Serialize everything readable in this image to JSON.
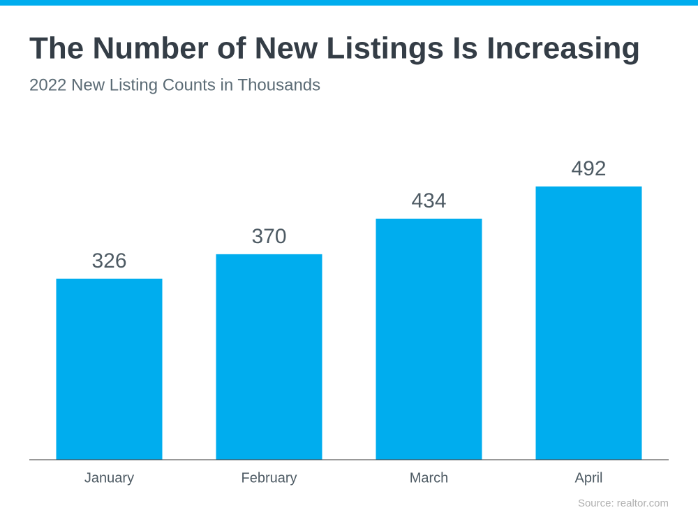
{
  "chart_data": {
    "type": "bar",
    "title": "The Number of New Listings Is Increasing",
    "subtitle": "2022 New Listing Counts in Thousands",
    "categories": [
      "January",
      "February",
      "March",
      "April"
    ],
    "values": [
      326,
      370,
      434,
      492
    ],
    "color": "#00adee",
    "source": "Source: realtor.com"
  }
}
